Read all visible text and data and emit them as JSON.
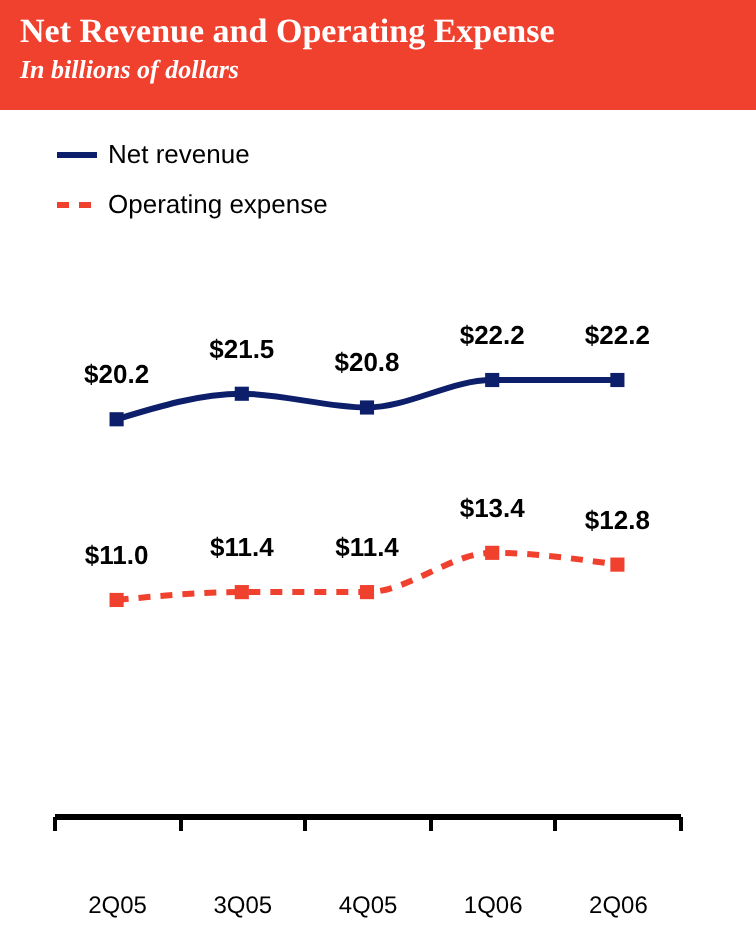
{
  "chart_data": {
    "type": "line",
    "title": "Net Revenue and Operating Expense",
    "subtitle": "In billions of dollars",
    "categories": [
      "2Q05",
      "3Q05",
      "4Q05",
      "1Q06",
      "2Q06"
    ],
    "series": [
      {
        "name": "Net revenue",
        "color": "#0d1f6b",
        "values": [
          20.2,
          21.5,
          20.8,
          22.2,
          22.2
        ],
        "line_style": "solid",
        "value_labels": [
          "$20.2",
          "$21.5",
          "$20.8",
          "$22.2",
          "$22.2"
        ]
      },
      {
        "name": "Operating expense",
        "color": "#f0402e",
        "values": [
          11.0,
          11.4,
          11.4,
          13.4,
          12.8
        ],
        "line_style": "dashed",
        "value_labels": [
          "$11.0",
          "$11.4",
          "$11.4",
          "$13.4",
          "$12.8"
        ]
      }
    ],
    "tick_labels": "x",
    "marker": "square",
    "legend": "top left",
    "grid": false
  }
}
